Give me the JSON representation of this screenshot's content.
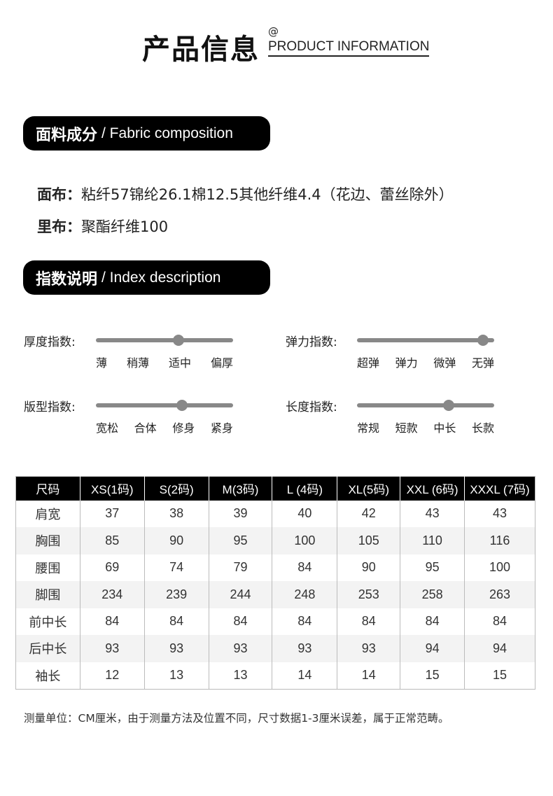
{
  "header": {
    "title_cn": "产品信息",
    "at": "@",
    "title_en": "PRODUCT INFORMATION"
  },
  "fabric": {
    "heading_cn": "面料成分",
    "heading_en": "/ Fabric composition",
    "outer_label": "面布：",
    "outer_value": "粘纤57锦纶26.1棉12.5其他纤维4.4（花边、蕾丝除外）",
    "lining_label": "里布：",
    "lining_value": "聚酯纤维100"
  },
  "index": {
    "heading_cn": "指数说明",
    "heading_en": "/ Index description",
    "items": [
      {
        "label": "厚度指数:",
        "ticks": [
          "薄",
          "稍薄",
          "适中",
          "偏厚"
        ],
        "level": 0.6
      },
      {
        "label": "弹力指数:",
        "ticks": [
          "超弹",
          "弹力",
          "微弹",
          "无弹"
        ],
        "level": 0.92
      },
      {
        "label": "版型指数:",
        "ticks": [
          "宽松",
          "合体",
          "修身",
          "紧身"
        ],
        "level": 0.63
      },
      {
        "label": "长度指数:",
        "ticks": [
          "常规",
          "短款",
          "中长",
          "长款"
        ],
        "level": 0.67
      }
    ]
  },
  "size_table": {
    "headers": [
      "尺码",
      "XS(1码)",
      "S(2码)",
      "M(3码)",
      "L (4码)",
      "XL(5码)",
      "XXL (6码)",
      "XXXL (7码)"
    ],
    "rows": [
      [
        "肩宽",
        "37",
        "38",
        "39",
        "40",
        "42",
        "43",
        "43"
      ],
      [
        "胸围",
        "85",
        "90",
        "95",
        "100",
        "105",
        "110",
        "116"
      ],
      [
        "腰围",
        "69",
        "74",
        "79",
        "84",
        "90",
        "95",
        "100"
      ],
      [
        "脚围",
        "234",
        "239",
        "244",
        "248",
        "253",
        "258",
        "263"
      ],
      [
        "前中长",
        "84",
        "84",
        "84",
        "84",
        "84",
        "84",
        "84"
      ],
      [
        "后中长",
        "93",
        "93",
        "93",
        "93",
        "93",
        "94",
        "94"
      ],
      [
        "袖长",
        "12",
        "13",
        "13",
        "14",
        "14",
        "15",
        "15"
      ]
    ]
  },
  "note": "测量单位：CM厘米，由于测量方法及位置不同，尺寸数据1-3厘米误差，属于正常范畴。"
}
